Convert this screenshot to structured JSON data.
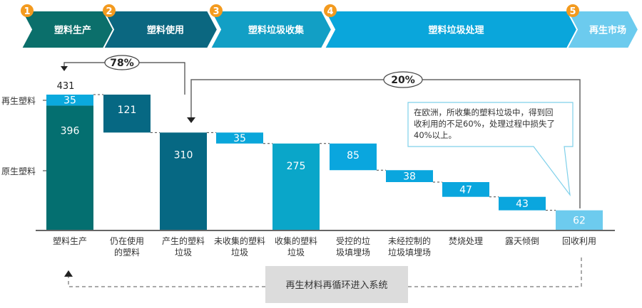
{
  "stages": [
    {
      "num": "1",
      "label": "塑料生产",
      "color": "#0b6f6b"
    },
    {
      "num": "2",
      "label": "塑料使用",
      "color": "#0b6780"
    },
    {
      "num": "3",
      "label": "塑料垃圾收集",
      "color": "#129fc5"
    },
    {
      "num": "4",
      "label": "塑料垃圾处理",
      "color": "#0aa6db"
    },
    {
      "num": "5",
      "label": "再生市场",
      "color": "#6ccbee"
    }
  ],
  "stage_badge_color": "#f39a1e",
  "loops": {
    "top_left_pct": "78%",
    "top_right_pct": "20%"
  },
  "axis_labels": {
    "recycled": "再生塑料",
    "virgin": "原生塑料"
  },
  "total_label": "431",
  "callout": {
    "lines": [
      "在欧洲，所收集的塑料垃圾中，得到回",
      "收利用的不足60%，处理过程中损失了",
      "40%以上。"
    ]
  },
  "recycle_box": "再生材料再循环进入系统",
  "chart_data": {
    "type": "waterfall",
    "categories": [
      [
        "塑料生产"
      ],
      [
        "仍在使用",
        "的塑料"
      ],
      [
        "产生的塑料",
        "垃圾"
      ],
      [
        "未收集的塑料",
        "垃圾"
      ],
      [
        "收集的塑料",
        "垃圾"
      ],
      [
        "受控的垃",
        "圾填埋场"
      ],
      [
        "未经控制的",
        "垃圾填埋场"
      ],
      [
        "焚烧处理"
      ],
      [
        "露天倾倒"
      ],
      [
        "回收利用"
      ]
    ],
    "bars": [
      {
        "segments": [
          {
            "name": "原生塑料",
            "value": 396,
            "from": 0,
            "color": "#046f70"
          },
          {
            "name": "再生塑料",
            "value": 35,
            "from": 396,
            "color": "#0ba9dd"
          }
        ]
      },
      {
        "segments": [
          {
            "value": 121,
            "from": 310,
            "color": "#066883"
          }
        ]
      },
      {
        "segments": [
          {
            "value": 310,
            "from": 0,
            "color": "#066883"
          }
        ]
      },
      {
        "segments": [
          {
            "value": 35,
            "from": 275,
            "color": "#0aa6da"
          }
        ]
      },
      {
        "segments": [
          {
            "value": 275,
            "from": 0,
            "color": "#0aa6c9"
          }
        ]
      },
      {
        "segments": [
          {
            "value": 85,
            "from": 190,
            "color": "#0aa6de"
          }
        ]
      },
      {
        "segments": [
          {
            "value": 38,
            "from": 152,
            "color": "#0aa6de"
          }
        ]
      },
      {
        "segments": [
          {
            "value": 47,
            "from": 105,
            "color": "#0aa6de"
          }
        ]
      },
      {
        "segments": [
          {
            "value": 43,
            "from": 62,
            "color": "#0aa6de"
          }
        ]
      },
      {
        "segments": [
          {
            "value": 62,
            "from": 0,
            "color": "#6dcbee"
          }
        ]
      }
    ],
    "ylim": [
      0,
      431
    ]
  }
}
